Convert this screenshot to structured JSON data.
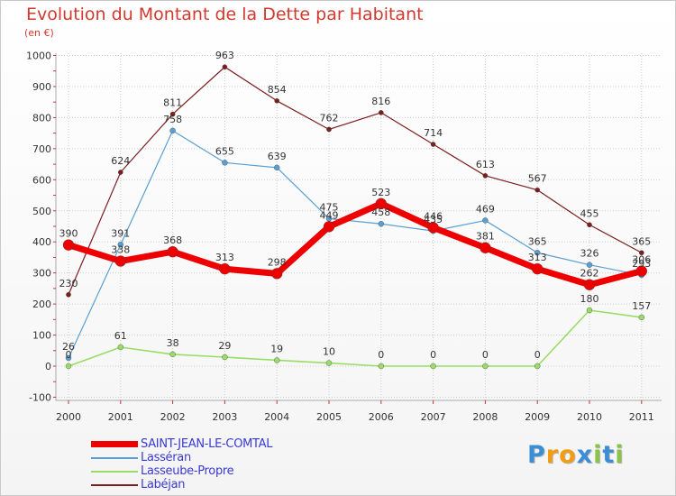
{
  "chart_data": {
    "type": "line",
    "title": "Evolution du Montant de la Dette par Habitant",
    "subtitle": "(en €)",
    "categories": [
      "2000",
      "2001",
      "2002",
      "2003",
      "2004",
      "2005",
      "2006",
      "2007",
      "2008",
      "2009",
      "2010",
      "2011"
    ],
    "ylim": [
      -100,
      1000
    ],
    "yticks": [
      -100,
      0,
      100,
      200,
      300,
      400,
      500,
      600,
      700,
      800,
      900,
      1000
    ],
    "grid": true,
    "legend_position": "bottom-left",
    "series": [
      {
        "name": "Labéjan",
        "color": "#7b1e1e",
        "width": 1.2,
        "marker": 2.6,
        "values": [
          230,
          624,
          811,
          963,
          854,
          762,
          816,
          714,
          613,
          567,
          455,
          365
        ]
      },
      {
        "name": "Lasseube-Propre",
        "color": "#99dd66",
        "width": 1.6,
        "marker": 3,
        "values": [
          0,
          61,
          38,
          29,
          19,
          10,
          0,
          0,
          0,
          0,
          180,
          157
        ]
      },
      {
        "name": "Lasséran",
        "color": "#5a9fd4",
        "width": 1.2,
        "marker": 3,
        "values": [
          26,
          391,
          758,
          655,
          639,
          475,
          458,
          435,
          469,
          365,
          326,
          293
        ]
      },
      {
        "name": "SAINT-JEAN-LE-COMTAL",
        "color": "#ee0000",
        "width": 7,
        "marker": 6,
        "values": [
          390,
          338,
          368,
          313,
          298,
          449,
          523,
          446,
          381,
          313,
          262,
          306
        ]
      }
    ],
    "legend": [
      "SAINT-JEAN-LE-COMTAL",
      "Lasséran",
      "Lasseube-Propre",
      "Labéjan"
    ]
  },
  "logo": {
    "letters": [
      "P",
      "r",
      "o",
      "x",
      "i",
      "t",
      "i"
    ],
    "colors": [
      "#3b8ed6",
      "#f39c12",
      "#f39c12",
      "#3b8ed6",
      "#8bc34a",
      "#3b8ed6",
      "#8bc34a"
    ]
  }
}
